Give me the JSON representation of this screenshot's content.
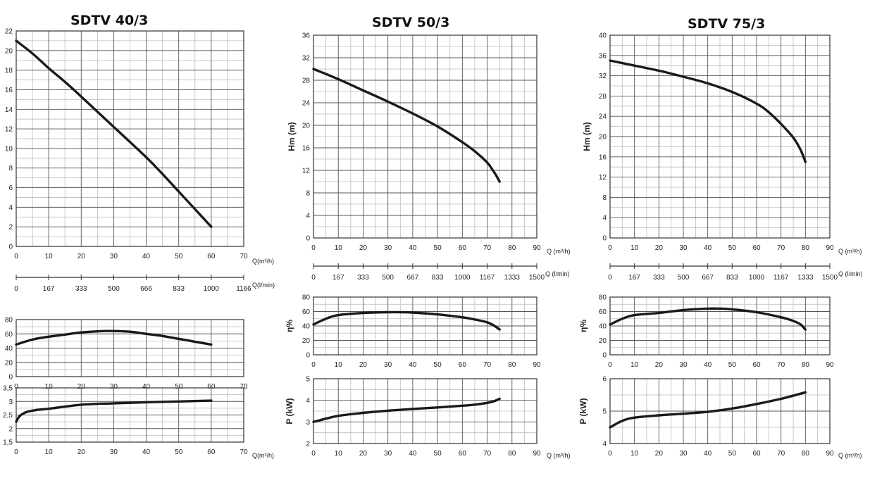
{
  "titles": [
    "SDTV 40/3",
    "SDTV 50/3",
    "SDTV 75/3"
  ],
  "colors": {
    "curve": "#1a1a1a",
    "grid_major": "#555555",
    "grid_minor": "#bbbbbb",
    "frame": "#333333"
  },
  "chart_data": [
    {
      "id": "sdtv40-head",
      "type": "line",
      "title": "SDTV 40/3",
      "xlabel": "Q(m³/h)",
      "ylabel": "",
      "xlim": [
        0,
        70
      ],
      "ylim": [
        0,
        22
      ],
      "xticks": [
        0,
        10,
        20,
        30,
        40,
        50,
        60,
        70
      ],
      "yticks": [
        0,
        2,
        4,
        6,
        8,
        10,
        12,
        14,
        16,
        18,
        20,
        22
      ],
      "yticklabels": [
        "0",
        "2",
        "4",
        "6",
        "8",
        "10",
        "12",
        "14",
        "16",
        "18",
        "20",
        "22"
      ],
      "secondary_axis": {
        "label": "Q(l/min)",
        "tick_positions": [
          0,
          10,
          20,
          30,
          40,
          50,
          60,
          70
        ],
        "tick_labels": [
          "0",
          "167",
          "333",
          "500",
          "666",
          "833",
          "1000",
          "1166"
        ]
      },
      "grid": true,
      "series": [
        {
          "x": [
            0,
            5,
            10,
            15,
            20,
            30,
            40,
            45,
            50,
            55,
            60
          ],
          "y": [
            21,
            19.7,
            18.2,
            16.8,
            15.3,
            12.2,
            9.1,
            7.4,
            5.6,
            3.8,
            2
          ]
        }
      ]
    },
    {
      "id": "sdtv40-eff",
      "type": "line",
      "xlabel": "",
      "ylabel": "",
      "xlim": [
        0,
        70
      ],
      "ylim": [
        0,
        80
      ],
      "xticks": [
        0,
        10,
        20,
        30,
        40,
        50,
        60,
        70
      ],
      "yticks": [
        0,
        20,
        40,
        60,
        80
      ],
      "yticklabels": [
        "0",
        "20",
        "40",
        "60",
        "80"
      ],
      "grid": true,
      "series": [
        {
          "x": [
            0,
            5,
            10,
            15,
            20,
            28,
            35,
            40,
            45,
            50,
            55,
            60
          ],
          "y": [
            45,
            52,
            56,
            59,
            62,
            64,
            63,
            60,
            57,
            53,
            49,
            45
          ]
        }
      ]
    },
    {
      "id": "sdtv40-power",
      "type": "line",
      "xlabel": "Q(m³/h)",
      "ylabel": "",
      "xlim": [
        0,
        70
      ],
      "ylim": [
        1.5,
        3.5
      ],
      "xticks": [
        0,
        10,
        20,
        30,
        40,
        50,
        60,
        70
      ],
      "yticks": [
        1.5,
        2,
        2.5,
        3,
        3.5
      ],
      "yticklabels": [
        "1,5",
        "2",
        "2,5",
        "3",
        "3,5"
      ],
      "grid": true,
      "series": [
        {
          "x": [
            0,
            1,
            3,
            6,
            10,
            20,
            30,
            40,
            50,
            60
          ],
          "y": [
            2.25,
            2.45,
            2.6,
            2.68,
            2.73,
            2.88,
            2.93,
            2.97,
            3.0,
            3.03
          ]
        }
      ]
    },
    {
      "id": "sdtv50-head",
      "type": "line",
      "title": "SDTV 50/3",
      "xlabel": "Q (m³/h)",
      "ylabel": "Hm   (m)",
      "xlim": [
        0,
        90
      ],
      "ylim": [
        0,
        36
      ],
      "xticks": [
        0,
        10,
        20,
        30,
        40,
        50,
        60,
        70,
        80,
        90
      ],
      "yticks": [
        0,
        4,
        8,
        12,
        16,
        20,
        24,
        28,
        32,
        36
      ],
      "yticklabels": [
        "0",
        "4",
        "8",
        "12",
        "16",
        "20",
        "24",
        "28",
        "32",
        "36"
      ],
      "secondary_axis": {
        "label": "Q (l/min)",
        "tick_positions": [
          0,
          10,
          20,
          30,
          40,
          50,
          60,
          70,
          80,
          90
        ],
        "tick_labels": [
          "0",
          "167",
          "333",
          "500",
          "667",
          "833",
          "1000",
          "1167",
          "1333",
          "1500"
        ]
      },
      "grid": true,
      "series": [
        {
          "x": [
            0,
            10,
            20,
            30,
            40,
            50,
            60,
            65,
            70,
            72,
            73.5,
            75
          ],
          "y": [
            30,
            28.2,
            26.2,
            24.2,
            22.1,
            19.8,
            17,
            15.4,
            13.4,
            12.2,
            11.2,
            10
          ]
        }
      ]
    },
    {
      "id": "sdtv50-eff",
      "type": "line",
      "xlabel": "",
      "ylabel": "η%",
      "xlim": [
        0,
        90
      ],
      "ylim": [
        0,
        80
      ],
      "xticks": [
        0,
        10,
        20,
        30,
        40,
        50,
        60,
        70,
        80,
        90
      ],
      "yticks": [
        0,
        20,
        40,
        60,
        80
      ],
      "yticklabels": [
        "0",
        "20",
        "40",
        "60",
        "80"
      ],
      "grid": true,
      "series": [
        {
          "x": [
            0,
            5,
            10,
            20,
            30,
            40,
            50,
            60,
            65,
            70,
            73,
            75
          ],
          "y": [
            42,
            50,
            55,
            58,
            59,
            58.5,
            56,
            52,
            49,
            45,
            40,
            35
          ]
        }
      ]
    },
    {
      "id": "sdtv50-power",
      "type": "line",
      "xlabel": "Q (m³/h)",
      "ylabel": "P   (kW)",
      "xlim": [
        0,
        90
      ],
      "ylim": [
        2,
        5
      ],
      "xticks": [
        0,
        10,
        20,
        30,
        40,
        50,
        60,
        70,
        80,
        90
      ],
      "yticks": [
        2,
        3,
        4,
        5
      ],
      "yticklabels": [
        "2",
        "3",
        "4",
        "5"
      ],
      "grid": true,
      "series": [
        {
          "x": [
            0,
            5,
            10,
            20,
            30,
            40,
            50,
            60,
            65,
            70,
            73,
            75
          ],
          "y": [
            3.0,
            3.15,
            3.28,
            3.42,
            3.52,
            3.6,
            3.67,
            3.75,
            3.8,
            3.88,
            3.97,
            4.07
          ]
        }
      ]
    },
    {
      "id": "sdtv75-head",
      "type": "line",
      "title": "SDTV 75/3",
      "xlabel": "Q (m³/h)",
      "ylabel": "Hm   (m)",
      "xlim": [
        0,
        90
      ],
      "ylim": [
        0,
        40
      ],
      "xticks": [
        0,
        10,
        20,
        30,
        40,
        50,
        60,
        70,
        80,
        90
      ],
      "yticks": [
        0,
        4,
        8,
        12,
        16,
        20,
        24,
        28,
        32,
        36,
        40
      ],
      "yticklabels": [
        "0",
        "4",
        "8",
        "12",
        "16",
        "20",
        "24",
        "28",
        "32",
        "36",
        "40"
      ],
      "secondary_axis": {
        "label": "Q (l/min)",
        "tick_positions": [
          0,
          10,
          20,
          30,
          40,
          50,
          60,
          70,
          80,
          90
        ],
        "tick_labels": [
          "0",
          "167",
          "333",
          "500",
          "667",
          "833",
          "1000",
          "1167",
          "1333",
          "1500"
        ]
      },
      "grid": true,
      "series": [
        {
          "x": [
            0,
            10,
            20,
            30,
            40,
            50,
            60,
            65,
            70,
            75,
            78,
            80
          ],
          "y": [
            35,
            34,
            33,
            31.8,
            30.5,
            28.8,
            26.5,
            24.8,
            22.5,
            19.8,
            17.4,
            15
          ]
        }
      ]
    },
    {
      "id": "sdtv75-eff",
      "type": "line",
      "xlabel": "",
      "ylabel": "η%",
      "xlim": [
        0,
        90
      ],
      "ylim": [
        0,
        80
      ],
      "xticks": [
        0,
        10,
        20,
        30,
        40,
        50,
        60,
        70,
        80,
        90
      ],
      "yticks": [
        0,
        20,
        40,
        60,
        80
      ],
      "yticklabels": [
        "0",
        "20",
        "40",
        "60",
        "80"
      ],
      "grid": true,
      "series": [
        {
          "x": [
            0,
            5,
            10,
            20,
            30,
            40,
            45,
            50,
            60,
            70,
            75,
            78,
            80
          ],
          "y": [
            42,
            50,
            55,
            58,
            62,
            64,
            64,
            63,
            59,
            52,
            47,
            42,
            35
          ]
        }
      ]
    },
    {
      "id": "sdtv75-power",
      "type": "line",
      "xlabel": "Q (m³/h)",
      "ylabel": "P   (kW)",
      "xlim": [
        0,
        90
      ],
      "ylim": [
        4,
        6
      ],
      "xticks": [
        0,
        10,
        20,
        30,
        40,
        50,
        60,
        70,
        80,
        90
      ],
      "yticks": [
        4,
        5,
        6
      ],
      "yticklabels": [
        "4",
        "5",
        "6"
      ],
      "grid": true,
      "series": [
        {
          "x": [
            0,
            5,
            10,
            20,
            30,
            40,
            50,
            60,
            70,
            80
          ],
          "y": [
            4.5,
            4.7,
            4.8,
            4.87,
            4.92,
            4.98,
            5.08,
            5.22,
            5.38,
            5.58
          ]
        }
      ]
    }
  ]
}
